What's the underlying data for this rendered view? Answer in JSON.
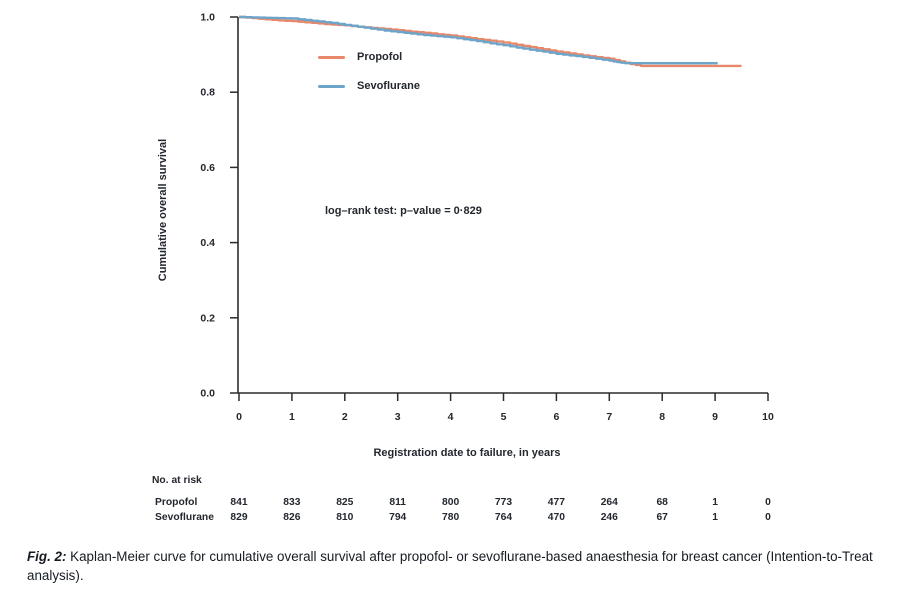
{
  "figure": {
    "caption_label": "Fig. 2:",
    "caption_text": " Kaplan-Meier curve for cumulative overall survival after propofol- or sevoflurane-based anaesthesia for breast cancer (Intention-to-Treat analysis)."
  },
  "chart_data": {
    "type": "line",
    "subtype": "kaplan-meier-step",
    "title": "",
    "xlabel": "Registration date to failure, in years",
    "ylabel": "Cumulative overall survival",
    "xlim": [
      0,
      10
    ],
    "ylim": [
      0.0,
      1.0
    ],
    "xticks": [
      0,
      1,
      2,
      3,
      4,
      5,
      6,
      7,
      8,
      9,
      10
    ],
    "yticks": [
      0.0,
      0.2,
      0.4,
      0.6,
      0.8,
      1.0
    ],
    "grid": false,
    "legend_position": "inside-top-left",
    "annotation": "log–rank test: p–value = 0·829",
    "axis_color": "#2b2b2b",
    "series": [
      {
        "name": "Propofol",
        "color": "#E8886A",
        "x": [
          0,
          0.25,
          0.5,
          0.75,
          1,
          1.25,
          1.5,
          1.75,
          2,
          2.25,
          2.5,
          2.75,
          3,
          3.25,
          3.5,
          3.75,
          4,
          4.25,
          4.5,
          4.75,
          5,
          5.25,
          5.5,
          5.75,
          6,
          6.25,
          6.5,
          6.75,
          7,
          7.2,
          7.4,
          7.6,
          8,
          9,
          9.5
        ],
        "y": [
          1.0,
          0.997,
          0.994,
          0.991,
          0.989,
          0.986,
          0.983,
          0.98,
          0.978,
          0.974,
          0.971,
          0.968,
          0.965,
          0.961,
          0.958,
          0.954,
          0.951,
          0.946,
          0.941,
          0.937,
          0.932,
          0.926,
          0.92,
          0.914,
          0.908,
          0.903,
          0.898,
          0.893,
          0.889,
          0.882,
          0.875,
          0.87,
          0.87,
          0.87,
          0.87
        ]
      },
      {
        "name": "Sevoflurane",
        "color": "#6DA4C9",
        "x": [
          0,
          0.25,
          0.5,
          0.75,
          1,
          1.25,
          1.5,
          1.75,
          2,
          2.25,
          2.5,
          2.75,
          3,
          3.25,
          3.5,
          3.75,
          4,
          4.25,
          4.5,
          4.75,
          5,
          5.25,
          5.5,
          5.75,
          6,
          6.25,
          6.5,
          6.75,
          7,
          7.15,
          7.3,
          8,
          9.05
        ],
        "y": [
          1.0,
          0.999,
          0.998,
          0.997,
          0.996,
          0.992,
          0.988,
          0.984,
          0.979,
          0.974,
          0.969,
          0.964,
          0.96,
          0.956,
          0.952,
          0.949,
          0.946,
          0.941,
          0.936,
          0.93,
          0.925,
          0.919,
          0.913,
          0.908,
          0.902,
          0.898,
          0.894,
          0.889,
          0.884,
          0.88,
          0.877,
          0.877,
          0.877
        ]
      }
    ],
    "risk_table": {
      "title": "No. at risk",
      "times": [
        0,
        1,
        2,
        3,
        4,
        5,
        6,
        7,
        8,
        9,
        10
      ],
      "rows": [
        {
          "name": "Propofol",
          "values": [
            841,
            833,
            825,
            811,
            800,
            773,
            477,
            264,
            68,
            1,
            0
          ]
        },
        {
          "name": "Sevoflurane",
          "values": [
            829,
            826,
            810,
            794,
            780,
            764,
            470,
            246,
            67,
            1,
            0
          ]
        }
      ]
    }
  }
}
